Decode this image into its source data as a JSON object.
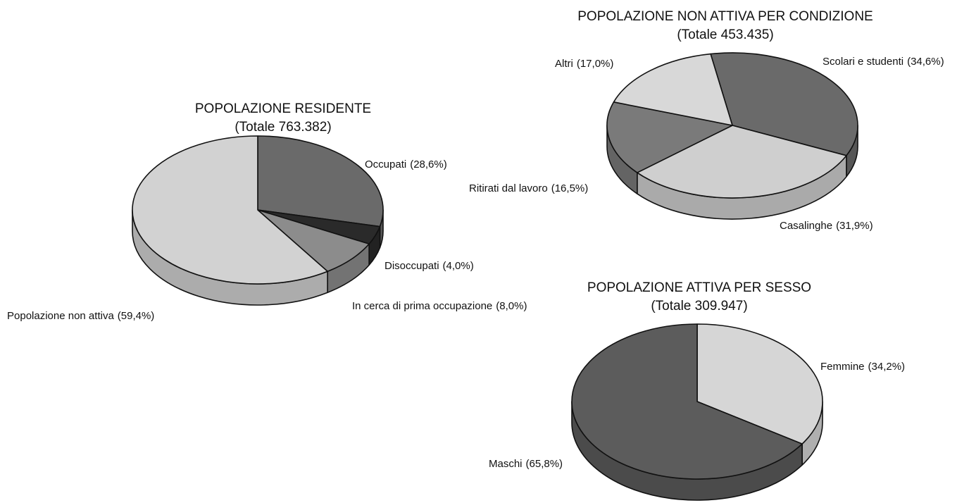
{
  "chart_data": [
    {
      "type": "pie",
      "title": "POPOLAZIONE RESIDENTE",
      "subtitle": "(Totale 763.382)",
      "categories": [
        "Occupati",
        "Disoccupati",
        "In cerca di prima occupazione",
        "Popolazione non attiva"
      ],
      "values": [
        28.6,
        4.0,
        8.0,
        59.4
      ],
      "value_labels": [
        "(28,6%)",
        "(4,0%)",
        "(8,0%)",
        "(59,4%)"
      ],
      "colors": [
        "#6a6a6a",
        "#2a2a2a",
        "#8c8c8c",
        "#d2d2d2"
      ]
    },
    {
      "type": "pie",
      "title": "POPOLAZIONE NON ATTIVA PER CONDIZIONE",
      "subtitle": "(Totale 453.435)",
      "categories": [
        "Scolari e studenti",
        "Casalinghe",
        "Ritirati dal lavoro",
        "Altri"
      ],
      "values": [
        34.6,
        31.9,
        16.5,
        17.0
      ],
      "value_labels": [
        "(34,6%)",
        "(31,9%)",
        "(16,5%)",
        "(17,0%)"
      ],
      "colors": [
        "#6a6a6a",
        "#cfcfcf",
        "#7a7a7a",
        "#d8d8d8"
      ]
    },
    {
      "type": "pie",
      "title": "POPOLAZIONE ATTIVA PER SESSO",
      "subtitle": "(Totale 309.947)",
      "categories": [
        "Femmine",
        "Maschi"
      ],
      "values": [
        34.2,
        65.8
      ],
      "value_labels": [
        "(34,2%)",
        "(65,8%)"
      ],
      "colors": [
        "#d6d6d6",
        "#5c5c5c"
      ]
    }
  ]
}
